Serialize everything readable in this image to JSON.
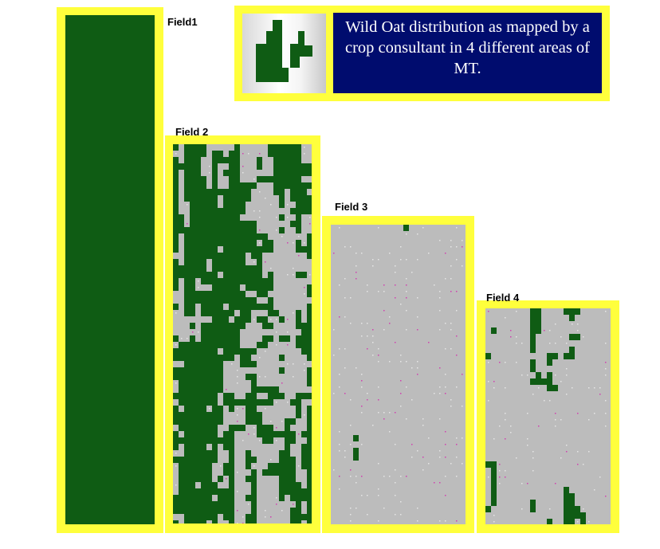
{
  "colors": {
    "frame": "#ffff3c",
    "wild_oat_patch": "#0f5c14",
    "field_background": "#bcbcbc",
    "sample_point": "#e6e6e6",
    "marker": "#d040b0",
    "legend_background": "#000c6e",
    "legend_text": "#ffffff"
  },
  "legend": {
    "text": "Wild Oat distribution as mapped by a crop consultant in 4 different areas of MT.",
    "icon": "field-map-icon"
  },
  "fields": [
    {
      "label": "Field1",
      "infestation": "heavy"
    },
    {
      "label": "Field 2",
      "infestation": "moderate-heavy"
    },
    {
      "label": "Field 3",
      "infestation": "light-moderate"
    },
    {
      "label": "Field 4",
      "infestation": "moderate"
    }
  ]
}
